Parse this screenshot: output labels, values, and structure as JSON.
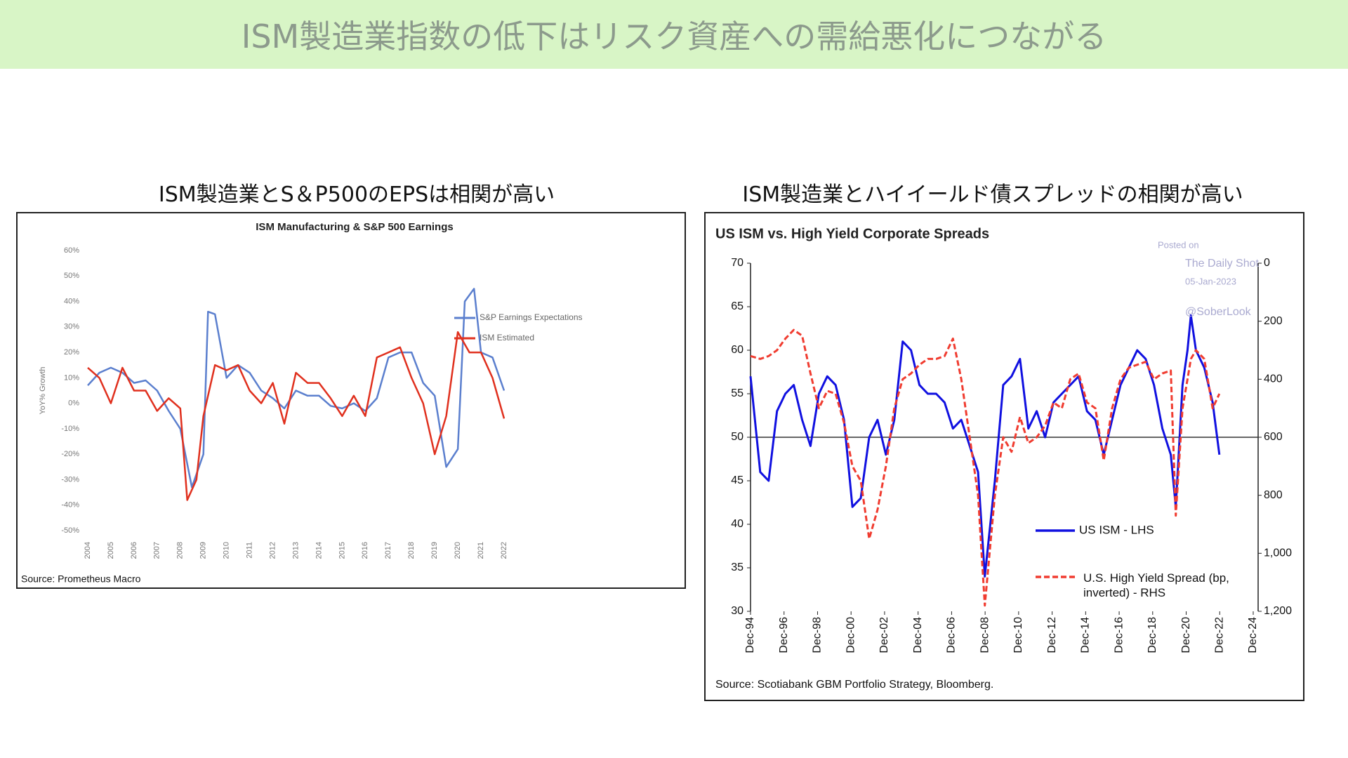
{
  "title": "ISM製造業指数の低下はリスク資産への需給悪化につながる",
  "chart_data": [
    {
      "type": "line",
      "heading": "ISM製造業とS＆P500のEPSは相関が高い",
      "title": "ISM Manufacturing & S&P 500 Earnings",
      "ylabel": "YoY% Growth",
      "source": "Source: Prometheus Macro",
      "xlim": [
        2004,
        2022
      ],
      "xticks": [
        2004,
        2005,
        2006,
        2007,
        2008,
        2009,
        2010,
        2011,
        2012,
        2013,
        2014,
        2015,
        2016,
        2017,
        2018,
        2019,
        2020,
        2021,
        2022
      ],
      "ylim": [
        -50,
        60
      ],
      "yticks": [
        {
          "value": 60,
          "label": "60%"
        },
        {
          "value": 50,
          "label": "50%"
        },
        {
          "value": 40,
          "label": "40%"
        },
        {
          "value": 30,
          "label": "30%"
        },
        {
          "value": 20,
          "label": "20%"
        },
        {
          "value": 10,
          "label": "10%"
        },
        {
          "value": 0,
          "label": "0%"
        },
        {
          "value": -10,
          "label": "-10%"
        },
        {
          "value": -20,
          "label": "-20%"
        },
        {
          "value": -30,
          "label": "-30%"
        },
        {
          "value": -40,
          "label": "-40%"
        },
        {
          "value": -50,
          "label": "-50%"
        }
      ],
      "series": [
        {
          "name": "S&P Earnings Expectations",
          "color": "#5b7fce",
          "x": [
            2004,
            2004.5,
            2005,
            2005.5,
            2006,
            2006.5,
            2007,
            2007.5,
            2008,
            2008.5,
            2009,
            2009.2,
            2009.5,
            2010,
            2010.5,
            2011,
            2011.5,
            2012,
            2012.5,
            2013,
            2013.5,
            2014,
            2014.5,
            2015,
            2015.5,
            2016,
            2016.5,
            2017,
            2017.5,
            2018,
            2018.5,
            2019,
            2019.5,
            2020,
            2020.3,
            2020.7,
            2021,
            2021.5,
            2022
          ],
          "values": [
            7,
            12,
            14,
            12,
            8,
            9,
            5,
            -3,
            -10,
            -33,
            -20,
            36,
            35,
            10,
            15,
            12,
            5,
            2,
            -2,
            5,
            3,
            3,
            -1,
            -2,
            0,
            -3,
            2,
            18,
            20,
            20,
            8,
            3,
            -25,
            -18,
            40,
            45,
            20,
            18,
            5
          ]
        },
        {
          "name": "ISM Estimated",
          "color": "#e0301e",
          "x": [
            2004,
            2004.5,
            2005,
            2005.5,
            2006,
            2006.5,
            2007,
            2007.5,
            2008,
            2008.3,
            2008.7,
            2009,
            2009.5,
            2010,
            2010.5,
            2011,
            2011.5,
            2012,
            2012.5,
            2013,
            2013.5,
            2014,
            2014.5,
            2015,
            2015.5,
            2016,
            2016.5,
            2017,
            2017.5,
            2018,
            2018.5,
            2019,
            2019.5,
            2020,
            2020.5,
            2021,
            2021.5,
            2022
          ],
          "values": [
            14,
            10,
            0,
            14,
            5,
            5,
            -3,
            2,
            -2,
            -38,
            -30,
            -5,
            15,
            13,
            15,
            5,
            0,
            8,
            -8,
            12,
            8,
            8,
            2,
            -5,
            3,
            -5,
            18,
            20,
            22,
            10,
            0,
            -20,
            -5,
            28,
            20,
            20,
            10,
            -6
          ]
        }
      ]
    },
    {
      "type": "line",
      "heading": "ISM製造業とハイイールド債スプレッドの相関が高い",
      "title": "US ISM vs. High Yield Corporate Spreads",
      "source": "Source: Scotiabank GBM Portfolio Strategy, Bloomberg.",
      "annotations": [
        "Posted on",
        "The Daily Shot",
        "05-Jan-2023",
        "@SoberLook"
      ],
      "xlim": [
        1994.92,
        2024.92
      ],
      "xticks": [
        {
          "value": 1994.92,
          "label": "Dec-94"
        },
        {
          "value": 1996.92,
          "label": "Dec-96"
        },
        {
          "value": 1998.92,
          "label": "Dec-98"
        },
        {
          "value": 2000.92,
          "label": "Dec-00"
        },
        {
          "value": 2002.92,
          "label": "Dec-02"
        },
        {
          "value": 2004.92,
          "label": "Dec-04"
        },
        {
          "value": 2006.92,
          "label": "Dec-06"
        },
        {
          "value": 2008.92,
          "label": "Dec-08"
        },
        {
          "value": 2010.92,
          "label": "Dec-10"
        },
        {
          "value": 2012.92,
          "label": "Dec-12"
        },
        {
          "value": 2014.92,
          "label": "Dec-14"
        },
        {
          "value": 2016.92,
          "label": "Dec-16"
        },
        {
          "value": 2018.92,
          "label": "Dec-18"
        },
        {
          "value": 2020.92,
          "label": "Dec-20"
        },
        {
          "value": 2022.92,
          "label": "Dec-22"
        },
        {
          "value": 2024.92,
          "label": "Dec-24"
        }
      ],
      "ylim": [
        30,
        70
      ],
      "yticks": [
        30,
        35,
        40,
        45,
        50,
        55,
        60,
        65,
        70
      ],
      "y2lim": [
        1200,
        0
      ],
      "y2ticks": [
        0,
        200,
        400,
        600,
        800,
        {
          "value": 1000,
          "label": "1,000"
        },
        {
          "value": 1200,
          "label": "1,200"
        }
      ],
      "hline": 50,
      "series": [
        {
          "name": "US ISM - LHS",
          "color": "#1010e0",
          "x": [
            1994.92,
            1995.5,
            1996,
            1996.5,
            1997,
            1997.5,
            1998,
            1998.5,
            1999,
            1999.5,
            2000,
            2000.5,
            2001,
            2001.5,
            2002,
            2002.5,
            2003,
            2003.5,
            2004,
            2004.5,
            2005,
            2005.5,
            2006,
            2006.5,
            2007,
            2007.5,
            2008,
            2008.5,
            2008.9,
            2009.5,
            2010,
            2010.5,
            2011,
            2011.5,
            2012,
            2012.5,
            2013,
            2013.5,
            2014,
            2014.5,
            2015,
            2015.5,
            2016,
            2016.5,
            2017,
            2017.5,
            2018,
            2018.5,
            2019,
            2019.5,
            2020,
            2020.3,
            2020.7,
            2021,
            2021.2,
            2021.5,
            2022,
            2022.5,
            2022.9
          ],
          "values": [
            57,
            46,
            45,
            53,
            55,
            56,
            52,
            49,
            55,
            57,
            56,
            52,
            42,
            43,
            50,
            52,
            48,
            52,
            61,
            60,
            56,
            55,
            55,
            54,
            51,
            52,
            49,
            46,
            34,
            45,
            56,
            57,
            59,
            51,
            53,
            50,
            54,
            55,
            56,
            57,
            53,
            52,
            48,
            52,
            56,
            58,
            60,
            59,
            56,
            51,
            48,
            42,
            56,
            60,
            64,
            60,
            58,
            54,
            48
          ]
        },
        {
          "name": "U.S. High Yield Spread (bp, inverted) - RHS",
          "color": "#f03c30",
          "dashed": true,
          "axis": "y2",
          "x": [
            1994.92,
            1995.5,
            1996,
            1996.5,
            1997,
            1997.5,
            1998,
            1998.5,
            1999,
            1999.5,
            2000,
            2000.5,
            2001,
            2001.5,
            2002,
            2002.5,
            2003,
            2003.5,
            2004,
            2004.5,
            2005,
            2005.5,
            2006,
            2006.5,
            2007,
            2007.5,
            2008,
            2008.5,
            2008.9,
            2009.5,
            2010,
            2010.5,
            2011,
            2011.5,
            2012,
            2012.5,
            2013,
            2013.5,
            2014,
            2014.5,
            2015,
            2015.5,
            2016,
            2016.5,
            2017,
            2017.5,
            2018,
            2018.5,
            2019,
            2019.5,
            2020,
            2020.3,
            2020.7,
            2021,
            2021.2,
            2021.5,
            2022,
            2022.5,
            2022.9
          ],
          "values": [
            320,
            330,
            320,
            300,
            260,
            230,
            250,
            380,
            500,
            440,
            450,
            550,
            700,
            750,
            950,
            850,
            700,
            500,
            400,
            380,
            350,
            330,
            330,
            320,
            260,
            400,
            600,
            800,
            1180,
            800,
            600,
            650,
            530,
            620,
            600,
            560,
            480,
            500,
            400,
            380,
            480,
            500,
            680,
            500,
            400,
            360,
            350,
            340,
            400,
            380,
            370,
            870,
            500,
            400,
            330,
            300,
            330,
            500,
            450
          ]
        }
      ]
    }
  ]
}
